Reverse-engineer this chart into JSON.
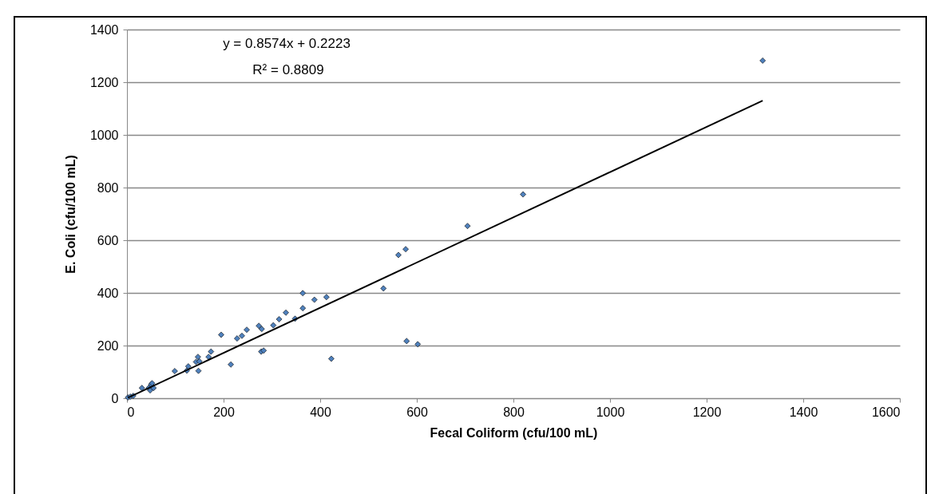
{
  "chart_data": {
    "type": "scatter",
    "xlabel": "Fecal Coliform (cfu/100 mL)",
    "ylabel": "E. Coli (cfu/100 mL)",
    "xlim": [
      0,
      1600
    ],
    "xticks": [
      0,
      200,
      400,
      600,
      800,
      1000,
      1200,
      1400,
      1600
    ],
    "ylim": [
      0,
      1400
    ],
    "yticks": [
      0,
      200,
      400,
      600,
      800,
      1000,
      1200,
      1400
    ],
    "grid": "y",
    "annotations": [
      "y = 0.8574x + 0.2223",
      "R² = 0.8809"
    ],
    "series": [
      {
        "marker": "diamond",
        "color": "#4f81bd",
        "x": [
          2,
          7,
          13,
          31,
          45,
          48,
          50,
          55,
          52,
          99,
          124,
          127,
          148,
          143,
          147,
          150,
          169,
          174,
          195,
          215,
          228,
          238,
          248,
          273,
          279,
          278,
          283,
          303,
          315,
          329,
          348,
          364,
          364,
          388,
          413,
          423,
          531,
          562,
          577,
          579,
          602,
          705,
          820,
          1316
        ],
        "values": [
          3,
          6,
          9,
          39,
          39,
          30,
          52,
          39,
          57,
          103,
          105,
          121,
          104,
          138,
          157,
          140,
          157,
          177,
          241,
          128,
          227,
          237,
          260,
          275,
          263,
          177,
          181,
          277,
          300,
          325,
          302,
          342,
          399,
          374,
          384,
          150,
          417,
          544,
          566,
          217,
          205,
          654,
          774,
          1282
        ]
      },
      {
        "type": "line",
        "color": "#000000",
        "x": [
          2,
          1316
        ],
        "values": [
          2,
          1130
        ]
      }
    ]
  }
}
